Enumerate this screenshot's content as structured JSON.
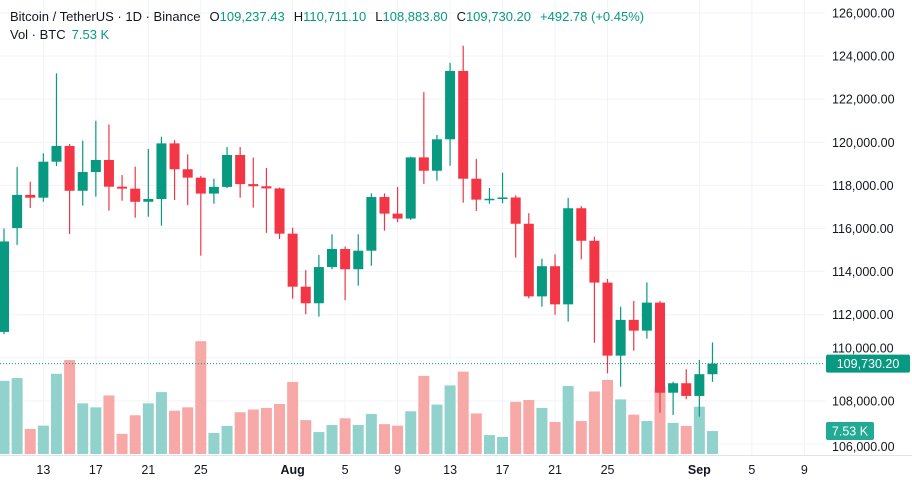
{
  "header": {
    "symbol": "Bitcoin / TetherUS · 1D · Binance",
    "o_label": "O",
    "o_value": "109,237.43",
    "h_label": "H",
    "h_value": "110,711.10",
    "l_label": "L",
    "l_value": "108,883.80",
    "c_label": "C",
    "c_value": "109,730.20",
    "change": "+492.78 (+0.45%)",
    "vol_label": "Vol · BTC",
    "vol_value": "7.53 K"
  },
  "colors": {
    "up": "#089981",
    "down": "#F23645",
    "vol_up": "#92D2CC",
    "vol_down": "#F7A9A7",
    "grid": "#F0F3FA"
  },
  "chart_data": {
    "type": "candlestick",
    "title": "Bitcoin / TetherUS · 1D · Binance",
    "ylim": [
      105600,
      126600
    ],
    "y_ticks": [
      "126,000.00",
      "124,000.00",
      "122,000.00",
      "120,000.00",
      "118,000.00",
      "116,000.00",
      "114,000.00",
      "112,000.00",
      "110,000.00",
      "108,000.00",
      "106,000.00"
    ],
    "y_tick_values": [
      126000,
      124000,
      122000,
      120000,
      118000,
      116000,
      114000,
      112000,
      110000,
      108000,
      106000
    ],
    "x_ticks": [
      {
        "label": "13",
        "index": 3
      },
      {
        "label": "17",
        "index": 7
      },
      {
        "label": "21",
        "index": 11
      },
      {
        "label": "25",
        "index": 15
      },
      {
        "label": "Aug",
        "index": 22,
        "bold": true
      },
      {
        "label": "5",
        "index": 26
      },
      {
        "label": "9",
        "index": 30
      },
      {
        "label": "13",
        "index": 34
      },
      {
        "label": "17",
        "index": 38
      },
      {
        "label": "21",
        "index": 42
      },
      {
        "label": "25",
        "index": 46
      },
      {
        "label": "Sep",
        "index": 53,
        "bold": true
      },
      {
        "label": "5",
        "index": 57
      },
      {
        "label": "9",
        "index": 61
      }
    ],
    "last_price_label": "109,730.20",
    "last_price": 109730.2,
    "volume_label": "7.53 K",
    "volume_unit": "K BTC",
    "fields": [
      "date",
      "open",
      "high",
      "low",
      "close",
      "volume"
    ],
    "candles": [
      [
        "Jul 10",
        111200,
        116000,
        111100,
        115400,
        24.0
      ],
      [
        "Jul 11",
        116020,
        118850,
        115240,
        117560,
        24.9
      ],
      [
        "Jul 12",
        117560,
        118170,
        116950,
        117430,
        8.2
      ],
      [
        "Jul 13",
        117430,
        119490,
        117240,
        119100,
        9.3
      ],
      [
        "Jul 14",
        119100,
        123200,
        118900,
        119830,
        26.3
      ],
      [
        "Jul 15",
        119830,
        119920,
        115750,
        117750,
        30.8
      ],
      [
        "Jul 16",
        117750,
        120080,
        117060,
        118620,
        16.6
      ],
      [
        "Jul 17",
        118620,
        121000,
        117480,
        119180,
        15.3
      ],
      [
        "Jul 18",
        119180,
        120830,
        116830,
        117940,
        19.2
      ],
      [
        "Jul 19",
        117940,
        118480,
        117290,
        117850,
        6.6
      ],
      [
        "Jul 20",
        117850,
        118870,
        116500,
        117240,
        12.7
      ],
      [
        "Jul 21",
        117240,
        119690,
        116550,
        117370,
        16.6
      ],
      [
        "Jul 22",
        117370,
        120260,
        116130,
        119950,
        20.3
      ],
      [
        "Jul 23",
        119950,
        120100,
        117320,
        118750,
        14.2
      ],
      [
        "Jul 24",
        118750,
        119440,
        117090,
        118360,
        15.3
      ],
      [
        "Jul 25",
        118360,
        118440,
        114740,
        117620,
        37.0
      ],
      [
        "Jul 26",
        117620,
        118310,
        117150,
        117930,
        6.9
      ],
      [
        "Jul 27",
        117930,
        119780,
        117870,
        119410,
        9.2
      ],
      [
        "Jul 28",
        119410,
        119780,
        117430,
        118060,
        13.7
      ],
      [
        "Jul 29",
        118060,
        119290,
        116970,
        117960,
        14.6
      ],
      [
        "Jul 30",
        117960,
        118810,
        115800,
        117860,
        15.1
      ],
      [
        "Jul 31",
        117860,
        117900,
        115510,
        115760,
        16.4
      ],
      [
        "Aug 1",
        115760,
        116040,
        112740,
        113300,
        23.6
      ],
      [
        "Aug 2",
        113300,
        114070,
        112020,
        112530,
        11.1
      ],
      [
        "Aug 3",
        112530,
        114770,
        111910,
        114210,
        7.2
      ],
      [
        "Aug 4",
        114210,
        115730,
        114110,
        115050,
        9.5
      ],
      [
        "Aug 5",
        115050,
        115160,
        112670,
        114110,
        11.7
      ],
      [
        "Aug 6",
        114110,
        115730,
        113350,
        114970,
        9.5
      ],
      [
        "Aug 7",
        114970,
        117630,
        114270,
        117460,
        13.1
      ],
      [
        "Aug 8",
        117460,
        117630,
        115900,
        116690,
        9.8
      ],
      [
        "Aug 9",
        116690,
        117930,
        116300,
        116460,
        9.3
      ],
      [
        "Aug 10",
        116460,
        119330,
        116400,
        119300,
        14.0
      ],
      [
        "Aug 11",
        119300,
        122330,
        118070,
        118680,
        25.6
      ],
      [
        "Aug 12",
        118680,
        120340,
        118220,
        120140,
        16.2
      ],
      [
        "Aug 13",
        120140,
        123690,
        118910,
        123310,
        22.5
      ],
      [
        "Aug 14",
        123310,
        124480,
        117200,
        118310,
        27.0
      ],
      [
        "Aug 15",
        118310,
        119230,
        116810,
        117340,
        13.3
      ],
      [
        "Aug 16",
        117340,
        117880,
        117150,
        117380,
        6.2
      ],
      [
        "Aug 17",
        117380,
        118590,
        117170,
        117440,
        5.6
      ],
      [
        "Aug 18",
        117440,
        117540,
        114650,
        116220,
        17.1
      ],
      [
        "Aug 19",
        116220,
        116710,
        112760,
        112850,
        17.7
      ],
      [
        "Aug 20",
        112850,
        114600,
        112370,
        114250,
        15.1
      ],
      [
        "Aug 21",
        114250,
        114800,
        112000,
        112480,
        10.5
      ],
      [
        "Aug 22",
        112480,
        117420,
        111680,
        116940,
        22.3
      ],
      [
        "Aug 23",
        116940,
        117040,
        114570,
        115430,
        10.8
      ],
      [
        "Aug 24",
        115430,
        115620,
        110700,
        113490,
        20.5
      ],
      [
        "Aug 25",
        113490,
        113660,
        109280,
        110100,
        24.3
      ],
      [
        "Aug 26",
        110100,
        112370,
        108660,
        111760,
        17.9
      ],
      [
        "Aug 27",
        111760,
        112640,
        110330,
        111260,
        12.9
      ],
      [
        "Aug 28",
        111260,
        113500,
        110890,
        112560,
        10.8
      ],
      [
        "Aug 29",
        112560,
        112640,
        107450,
        108380,
        21.9
      ],
      [
        "Aug 30",
        108380,
        108890,
        107350,
        108820,
        10.2
      ],
      [
        "Aug 31",
        108820,
        109470,
        108080,
        108230,
        9.2
      ],
      [
        "Sep 1",
        108230,
        109900,
        107270,
        109240,
        15.5
      ],
      [
        "Sep 2",
        109237.43,
        110711.1,
        108883.8,
        109730.2,
        7.53
      ]
    ]
  }
}
